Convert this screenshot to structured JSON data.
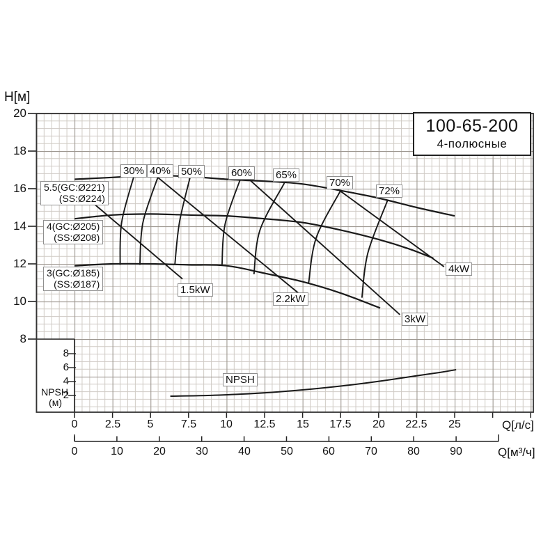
{
  "title_box": {
    "model": "100-65-200",
    "subtitle": "4-полюсные"
  },
  "colors": {
    "curve": "#1a1a1a",
    "grid_minor": "#cfcac4",
    "grid_major": "#9e9891",
    "axis": "#222222",
    "border": "#333333",
    "label_border": "#8f8f8f"
  },
  "chart_data": {
    "type": "line",
    "title": "Pump performance curves 100-65-200, 4-pole",
    "grid": "on",
    "y_axis": {
      "label": "H[м]",
      "ticks": [
        20,
        18,
        16,
        14,
        12,
        10,
        8
      ],
      "range": [
        4,
        20
      ]
    },
    "x_axis_ls": {
      "label": "Q[л/с]",
      "ticks": [
        0,
        2.5,
        5,
        7.5,
        10,
        12.5,
        15,
        17.5,
        20,
        22.5,
        25
      ],
      "range": [
        0,
        30
      ]
    },
    "x_axis_m3h": {
      "label": "Q[м³/ч]",
      "ticks": [
        0,
        10,
        20,
        30,
        40,
        50,
        60,
        70,
        80,
        90
      ],
      "range": [
        0,
        100
      ]
    },
    "npsh_axis": {
      "label": "NPSH",
      "unit": "(м)",
      "ticks": [
        8,
        6,
        4,
        2
      ]
    },
    "head_curves": [
      {
        "label_line1": "5.5(GC:Ø221)",
        "label_line2": "(SS:Ø224)",
        "points": [
          [
            0,
            16.5
          ],
          [
            2.5,
            16.6
          ],
          [
            5,
            16.7
          ],
          [
            7.5,
            16.65
          ],
          [
            10,
            16.5
          ],
          [
            12.5,
            16.4
          ],
          [
            15,
            16.25
          ],
          [
            17.5,
            15.9
          ],
          [
            20,
            15.5
          ],
          [
            22.5,
            15.0
          ],
          [
            25,
            14.55
          ]
        ]
      },
      {
        "label_line1": "4(GC:Ø205)",
        "label_line2": "(SS:Ø208)",
        "points": [
          [
            0,
            14.4
          ],
          [
            2.5,
            14.6
          ],
          [
            5,
            14.65
          ],
          [
            7.5,
            14.6
          ],
          [
            10,
            14.55
          ],
          [
            12.5,
            14.4
          ],
          [
            15,
            14.2
          ],
          [
            17.5,
            13.8
          ],
          [
            20,
            13.3
          ],
          [
            22,
            12.8
          ],
          [
            23.6,
            12.3
          ]
        ]
      },
      {
        "label_line1": "3(GC:Ø185)",
        "label_line2": "(SS:Ø187)",
        "points": [
          [
            0,
            11.9
          ],
          [
            2.5,
            12.0
          ],
          [
            5,
            12.0
          ],
          [
            7.5,
            11.95
          ],
          [
            10,
            11.9
          ],
          [
            12.5,
            11.5
          ],
          [
            15,
            11.05
          ],
          [
            17.5,
            10.45
          ],
          [
            20.1,
            9.65
          ]
        ]
      }
    ],
    "efficiency_curves": [
      {
        "label": "30%",
        "points": [
          [
            3.9,
            16.65
          ],
          [
            3.1,
            14.2
          ],
          [
            3.0,
            11.95
          ]
        ]
      },
      {
        "label": "40%",
        "points": [
          [
            5.5,
            16.65
          ],
          [
            4.5,
            14.2
          ],
          [
            4.3,
            11.95
          ]
        ]
      },
      {
        "label": "50%",
        "points": [
          [
            7.6,
            16.6
          ],
          [
            6.9,
            14.2
          ],
          [
            6.6,
            11.95
          ]
        ]
      },
      {
        "label": "60%",
        "points": [
          [
            10.9,
            16.5
          ],
          [
            9.9,
            14.1
          ],
          [
            9.7,
            11.9
          ]
        ]
      },
      {
        "label": "65%",
        "points": [
          [
            13.8,
            16.3
          ],
          [
            12.2,
            13.8
          ],
          [
            11.8,
            11.45
          ]
        ]
      },
      {
        "label": "70%",
        "points": [
          [
            17.5,
            15.9
          ],
          [
            15.9,
            13.4
          ],
          [
            15.4,
            11.0
          ]
        ]
      },
      {
        "label": "72%",
        "points": [
          [
            20.6,
            15.4
          ],
          [
            19.3,
            12.6
          ],
          [
            18.9,
            10.2
          ]
        ]
      }
    ],
    "power_lines": [
      {
        "label": "1.5kW",
        "from": [
          1.2,
          15.25
        ],
        "to": [
          7.1,
          11.2
        ]
      },
      {
        "label": "2.2kW",
        "from": [
          5.4,
          16.65
        ],
        "to": [
          15.1,
          10.2
        ]
      },
      {
        "label": "3kW",
        "from": [
          11.2,
          16.7
        ],
        "to": [
          21.4,
          9.3
        ]
      },
      {
        "label": "4kW",
        "from": [
          17.1,
          16.1
        ],
        "to": [
          24.3,
          11.85
        ]
      }
    ],
    "npsh_curve": {
      "label": "NPSH",
      "points": [
        [
          6.3,
          1.9
        ],
        [
          8.75,
          2.0
        ],
        [
          11,
          2.2
        ],
        [
          13.3,
          2.5
        ],
        [
          15.5,
          2.9
        ],
        [
          17.7,
          3.4
        ],
        [
          19.9,
          4.0
        ],
        [
          22.1,
          4.7
        ],
        [
          24,
          5.3
        ],
        [
          25.1,
          5.7
        ]
      ]
    }
  }
}
